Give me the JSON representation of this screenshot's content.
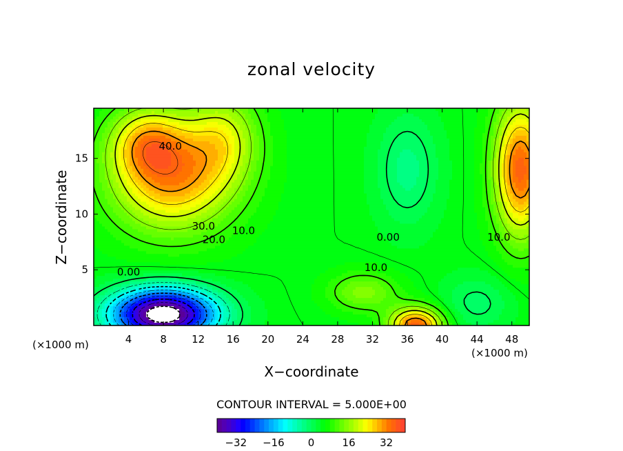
{
  "chart_data": {
    "type": "contour",
    "title": "zonal velocity",
    "xlabel": "X−coordinate",
    "ylabel": "Z−coordinate",
    "x_unit_left": "(×1000 m)",
    "x_unit_right": "(×1000 m)",
    "xlim": [
      0,
      50
    ],
    "ylim": [
      0,
      19.5
    ],
    "xticks": [
      4,
      8,
      12,
      16,
      20,
      24,
      28,
      32,
      36,
      40,
      44,
      48
    ],
    "xtick_labels": [
      "4",
      "8",
      "12",
      "16",
      "20",
      "24",
      "28",
      "32",
      "36",
      "40",
      "44",
      "48"
    ],
    "yticks": [
      5,
      10,
      15
    ],
    "ytick_labels": [
      "5",
      "10",
      "15"
    ],
    "contour_labels": [
      {
        "text": "40.0",
        "x": 8.8,
        "y": 15.8
      },
      {
        "text": "30.0",
        "x": 12.6,
        "y": 8.6
      },
      {
        "text": "20.0",
        "x": 13.8,
        "y": 7.4
      },
      {
        "text": "10.0",
        "x": 17.2,
        "y": 8.2
      },
      {
        "text": "0.00",
        "x": 4.0,
        "y": 4.5
      },
      {
        "text": "0.00",
        "x": 33.8,
        "y": 7.6
      },
      {
        "text": "10.0",
        "x": 32.4,
        "y": 4.9
      },
      {
        "text": "10.0",
        "x": 46.5,
        "y": 7.6
      }
    ],
    "contour_interval_label": "CONTOUR INTERVAL = 5.000E+00",
    "colorbar": {
      "min": -40,
      "max": 40,
      "ticks": [
        -32,
        -16,
        0,
        16,
        32
      ],
      "tick_labels": [
        "−32",
        "−16",
        "0",
        "16",
        "32"
      ]
    },
    "field_sources": [
      {
        "x": 9,
        "y": 13.5,
        "amp": 26,
        "sx": 7,
        "sy": 5
      },
      {
        "x": 6,
        "y": 16.5,
        "amp": 14,
        "sx": 4,
        "sy": 3
      },
      {
        "x": 15,
        "y": 17,
        "amp": 12,
        "sx": 4,
        "sy": 4
      },
      {
        "x": 8,
        "y": 1.0,
        "amp": -50,
        "sx": 6,
        "sy": 2.3
      },
      {
        "x": 36,
        "y": 14,
        "amp": -8,
        "sx": 3.5,
        "sy": 5
      },
      {
        "x": 44,
        "y": 2,
        "amp": -6,
        "sx": 4,
        "sy": 2.5
      },
      {
        "x": 49,
        "y": 14,
        "amp": 30,
        "sx": 3,
        "sy": 6
      },
      {
        "x": 37,
        "y": 0,
        "amp": 30,
        "sx": 3,
        "sy": 1.6
      },
      {
        "x": 31,
        "y": 3,
        "amp": 10,
        "sx": 4,
        "sy": 1.8
      }
    ],
    "field_base": 5
  }
}
